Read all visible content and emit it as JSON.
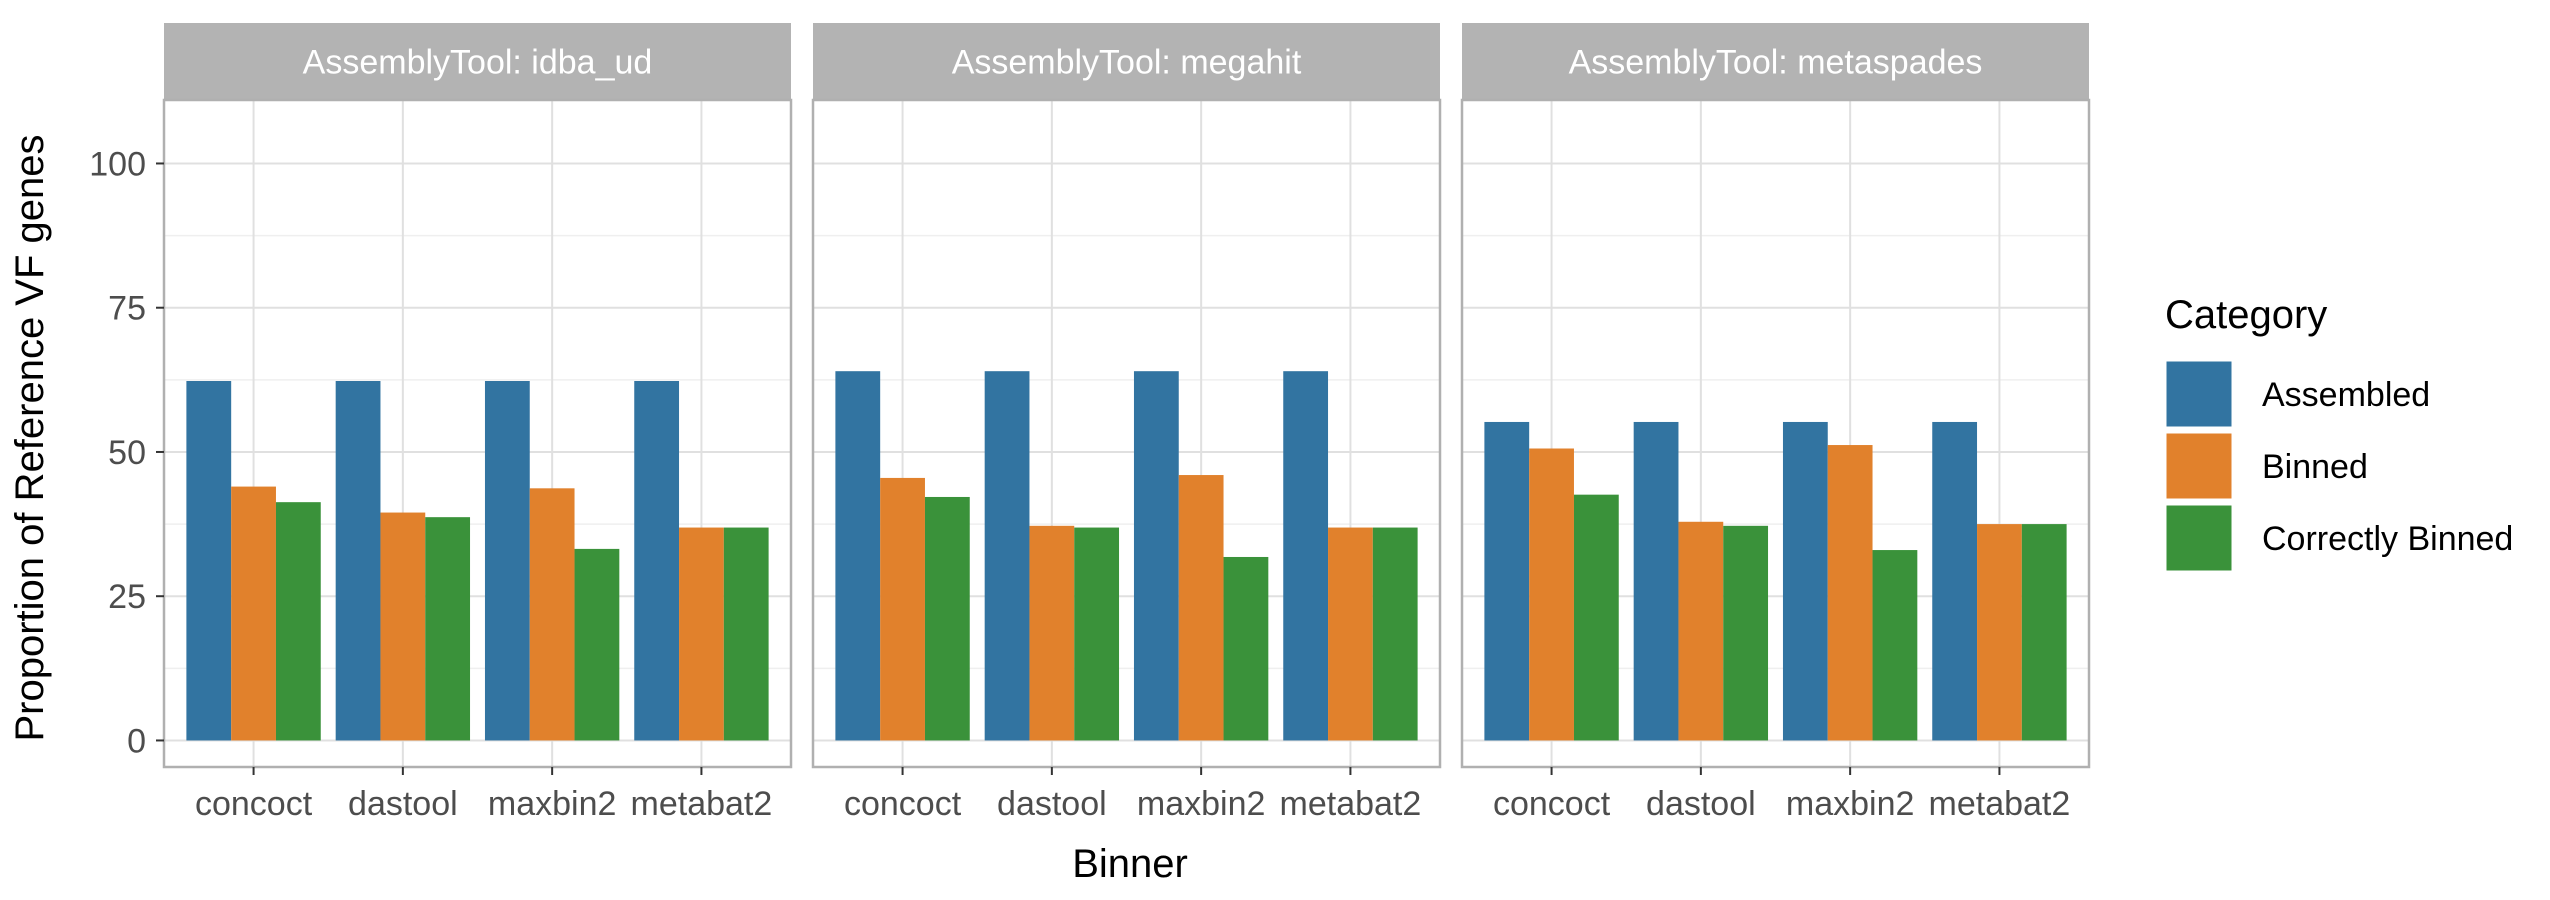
{
  "chart_data": {
    "type": "bar",
    "xlabel": "Binner",
    "ylabel": "Proportion of Reference VF genes",
    "ylim": [
      -4.6,
      111
    ],
    "yticks": [
      0,
      25,
      50,
      75,
      100
    ],
    "grid": true,
    "legend": {
      "title": "Category",
      "placement": "right",
      "entries": [
        "Assembled",
        "Binned",
        "Correctly Binned"
      ]
    },
    "colors": {
      "Assembled": "#3274a1",
      "Binned": "#e1812c",
      "Correctly Binned": "#3a923a",
      "strip": "#b3b3b3",
      "grid": "#e0e0e0",
      "panel_border": "#b0b0b0"
    },
    "panels": [
      {
        "strip_label": "AssemblyTool: idba_ud",
        "categories": [
          "concoct",
          "dastool",
          "maxbin2",
          "metabat2"
        ],
        "series": [
          {
            "name": "Assembled",
            "values": [
              62.3,
              62.3,
              62.3,
              62.3
            ]
          },
          {
            "name": "Binned",
            "values": [
              44.0,
              39.5,
              43.7,
              36.9
            ]
          },
          {
            "name": "Correctly Binned",
            "values": [
              41.3,
              38.7,
              33.2,
              36.9
            ]
          }
        ]
      },
      {
        "strip_label": "AssemblyTool: megahit",
        "categories": [
          "concoct",
          "dastool",
          "maxbin2",
          "metabat2"
        ],
        "series": [
          {
            "name": "Assembled",
            "values": [
              64.0,
              64.0,
              64.0,
              64.0
            ]
          },
          {
            "name": "Binned",
            "values": [
              45.5,
              37.2,
              46.0,
              36.9
            ]
          },
          {
            "name": "Correctly Binned",
            "values": [
              42.2,
              36.9,
              31.8,
              36.9
            ]
          }
        ]
      },
      {
        "strip_label": "AssemblyTool: metaspades",
        "categories": [
          "concoct",
          "dastool",
          "maxbin2",
          "metabat2"
        ],
        "series": [
          {
            "name": "Assembled",
            "values": [
              55.2,
              55.2,
              55.2,
              55.2
            ]
          },
          {
            "name": "Binned",
            "values": [
              50.6,
              37.9,
              51.2,
              37.5
            ]
          },
          {
            "name": "Correctly Binned",
            "values": [
              42.6,
              37.2,
              33.0,
              37.5
            ]
          }
        ]
      }
    ]
  }
}
